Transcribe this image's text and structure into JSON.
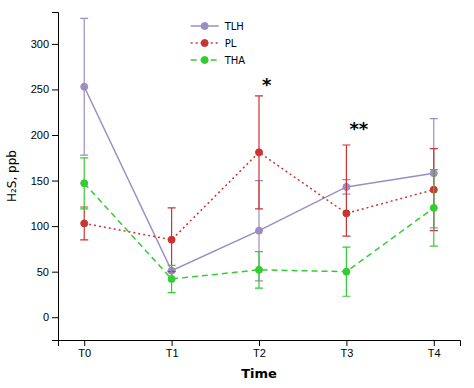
{
  "chart_data": {
    "type": "line",
    "categories": [
      "T0",
      "T1",
      "T2",
      "T3",
      "T4"
    ],
    "xlabel": "Time",
    "ylabel": "H₂S, ppb",
    "ylim": [
      -25,
      335
    ],
    "yticks": [
      0,
      50,
      100,
      150,
      200,
      250,
      300
    ],
    "grid": false,
    "legend": "top",
    "series": [
      {
        "name": "TLH",
        "color": "#9b8ec4",
        "line_style": "solid",
        "marker": "circle",
        "values": [
          253,
          51,
          95,
          143,
          158
        ],
        "error_low": [
          75,
          1,
          55,
          8,
          60
        ],
        "error_high": [
          75,
          1,
          55,
          8,
          60
        ]
      },
      {
        "name": "PL",
        "color": "#cc3333",
        "line_style": "dotted",
        "marker": "circle",
        "values": [
          103,
          85,
          181,
          114,
          140
        ],
        "error_low": [
          18,
          35,
          62,
          25,
          45
        ],
        "error_high": [
          18,
          35,
          62,
          75,
          45
        ]
      },
      {
        "name": "THA",
        "color": "#33cc33",
        "line_style": "dashed",
        "marker": "circle",
        "values": [
          147,
          42,
          52,
          50,
          120
        ],
        "error_low": [
          28,
          15,
          20,
          27,
          42
        ],
        "error_high": [
          28,
          15,
          20,
          27,
          42
        ]
      }
    ],
    "annotations": [
      {
        "text": "*",
        "x": "T2",
        "y": 248
      },
      {
        "text": "**",
        "x": "T3",
        "y": 200
      }
    ]
  }
}
